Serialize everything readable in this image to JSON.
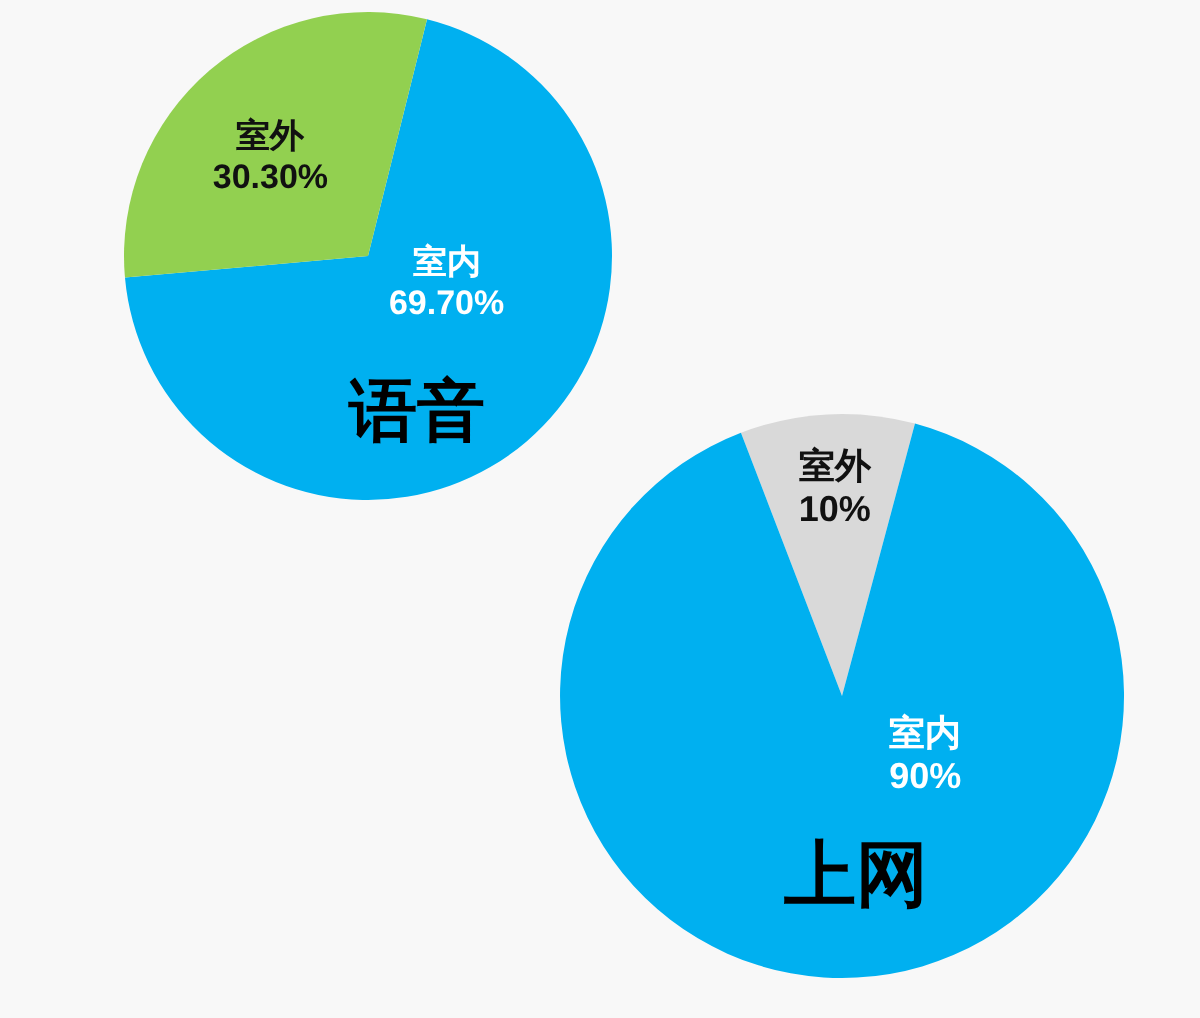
{
  "chart_data": [
    {
      "type": "pie",
      "title": "语音",
      "categories": [
        "室内",
        "室外"
      ],
      "values": [
        69.7,
        30.3
      ],
      "colors": [
        "#00b0f0",
        "#92d050"
      ],
      "value_labels": [
        "69.70%",
        "30.30%"
      ]
    },
    {
      "type": "pie",
      "title": "上网",
      "categories": [
        "室外",
        "室内"
      ],
      "values": [
        10,
        90
      ],
      "colors": [
        "#d9d9d9",
        "#00b0f0"
      ],
      "value_labels": [
        "10%",
        "90%"
      ]
    }
  ]
}
